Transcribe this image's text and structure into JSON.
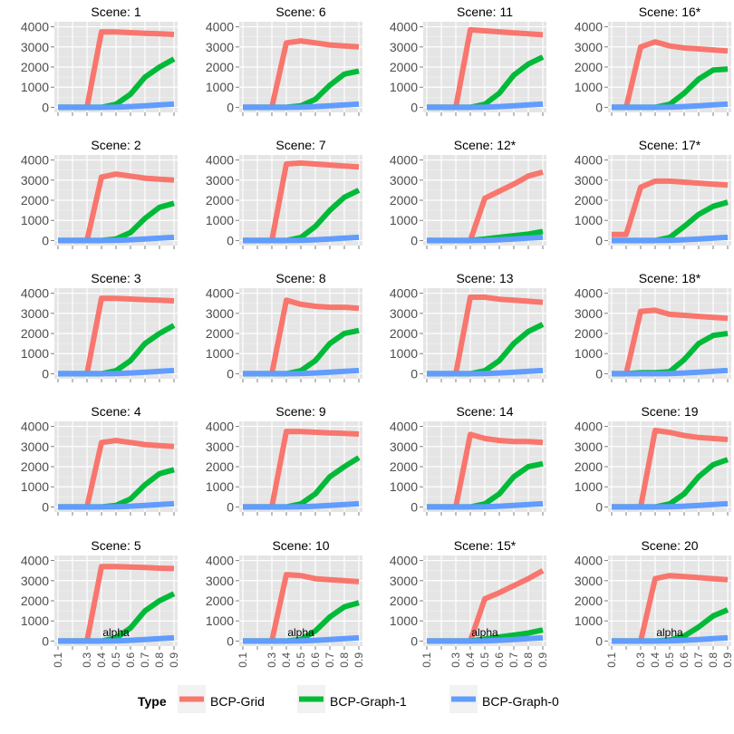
{
  "chart_data": {
    "type": "line",
    "xlabel": "alpha",
    "ylabel": "",
    "x": [
      0.1,
      0.2,
      0.3,
      0.4,
      0.5,
      0.6,
      0.7,
      0.8,
      0.9
    ],
    "x_tick_labels": [
      "0.1",
      "0.3",
      "0.4",
      "0.5",
      "0.6",
      "0.7",
      "0.8",
      "0.9"
    ],
    "x_tick_values": [
      0.1,
      0.3,
      0.4,
      0.5,
      0.6,
      0.7,
      0.8,
      0.9
    ],
    "y_ticks": [
      0,
      1000,
      2000,
      3000,
      4000
    ],
    "ylim": [
      -250,
      4250
    ],
    "xlim": [
      0.075,
      0.925
    ],
    "grid": true,
    "legend": {
      "title": "Type",
      "position": "bottom",
      "entries": [
        "BCP-Grid",
        "BCP-Graph-1",
        "BCP-Graph-0"
      ]
    },
    "series_colors": {
      "BCP-Grid": "#f8766d",
      "BCP-Graph-1": "#00ba38",
      "BCP-Graph-0": "#619cff"
    },
    "panel_background": "#e5e5e5",
    "panels": [
      {
        "title": "Scene: 1",
        "series": [
          {
            "name": "BCP-Grid",
            "values": [
              0,
              0,
              0,
              3750,
              3740,
              3710,
              3680,
              3650,
              3620
            ]
          },
          {
            "name": "BCP-Graph-1",
            "values": [
              0,
              0,
              0,
              0,
              150,
              650,
              1500,
              2000,
              2400
            ]
          },
          {
            "name": "BCP-Graph-0",
            "values": [
              0,
              0,
              0,
              0,
              10,
              40,
              80,
              120,
              160
            ]
          }
        ]
      },
      {
        "title": "Scene: 6",
        "series": [
          {
            "name": "BCP-Grid",
            "values": [
              0,
              0,
              0,
              3200,
              3300,
              3200,
              3100,
              3050,
              3000
            ]
          },
          {
            "name": "BCP-Graph-1",
            "values": [
              0,
              0,
              0,
              0,
              80,
              400,
              1100,
              1650,
              1800
            ]
          },
          {
            "name": "BCP-Graph-0",
            "values": [
              0,
              0,
              0,
              0,
              10,
              40,
              80,
              120,
              160
            ]
          }
        ]
      },
      {
        "title": "Scene: 11",
        "series": [
          {
            "name": "BCP-Grid",
            "values": [
              0,
              0,
              0,
              3850,
              3800,
              3750,
              3700,
              3650,
              3600
            ]
          },
          {
            "name": "BCP-Graph-1",
            "values": [
              0,
              0,
              0,
              0,
              150,
              700,
              1600,
              2150,
              2500
            ]
          },
          {
            "name": "BCP-Graph-0",
            "values": [
              0,
              0,
              0,
              0,
              10,
              40,
              80,
              120,
              160
            ]
          }
        ]
      },
      {
        "title": "Scene: 16*",
        "series": [
          {
            "name": "BCP-Grid",
            "values": [
              0,
              0,
              3000,
              3250,
              3050,
              2950,
              2900,
              2850,
              2800
            ]
          },
          {
            "name": "BCP-Graph-1",
            "values": [
              0,
              0,
              0,
              0,
              150,
              700,
              1400,
              1850,
              1900
            ]
          },
          {
            "name": "BCP-Graph-0",
            "values": [
              0,
              0,
              0,
              0,
              10,
              40,
              80,
              120,
              160
            ]
          }
        ]
      },
      {
        "title": "Scene: 2",
        "series": [
          {
            "name": "BCP-Grid",
            "values": [
              0,
              0,
              0,
              3150,
              3300,
              3200,
              3100,
              3050,
              3000
            ]
          },
          {
            "name": "BCP-Graph-1",
            "values": [
              0,
              0,
              0,
              0,
              80,
              400,
              1100,
              1650,
              1850
            ]
          },
          {
            "name": "BCP-Graph-0",
            "values": [
              0,
              0,
              0,
              0,
              10,
              40,
              80,
              120,
              160
            ]
          }
        ]
      },
      {
        "title": "Scene: 7",
        "series": [
          {
            "name": "BCP-Grid",
            "values": [
              0,
              0,
              0,
              3800,
              3850,
              3800,
              3750,
              3700,
              3650
            ]
          },
          {
            "name": "BCP-Graph-1",
            "values": [
              0,
              0,
              0,
              0,
              150,
              700,
              1500,
              2150,
              2500
            ]
          },
          {
            "name": "BCP-Graph-0",
            "values": [
              0,
              0,
              0,
              0,
              10,
              40,
              80,
              120,
              160
            ]
          }
        ]
      },
      {
        "title": "Scene: 12*",
        "series": [
          {
            "name": "BCP-Grid",
            "values": [
              0,
              0,
              0,
              0,
              2100,
              2450,
              2800,
              3200,
              3400
            ]
          },
          {
            "name": "BCP-Graph-1",
            "values": [
              0,
              0,
              0,
              0,
              80,
              160,
              240,
              320,
              450
            ]
          },
          {
            "name": "BCP-Graph-0",
            "values": [
              0,
              0,
              0,
              0,
              10,
              40,
              80,
              120,
              160
            ]
          }
        ]
      },
      {
        "title": "Scene: 17*",
        "series": [
          {
            "name": "BCP-Grid",
            "values": [
              300,
              300,
              2650,
              2950,
              2950,
              2900,
              2850,
              2800,
              2750
            ]
          },
          {
            "name": "BCP-Graph-1",
            "values": [
              0,
              0,
              0,
              0,
              150,
              700,
              1300,
              1700,
              1900
            ]
          },
          {
            "name": "BCP-Graph-0",
            "values": [
              0,
              0,
              0,
              0,
              10,
              40,
              80,
              120,
              160
            ]
          }
        ]
      },
      {
        "title": "Scene: 3",
        "series": [
          {
            "name": "BCP-Grid",
            "values": [
              0,
              0,
              0,
              3750,
              3740,
              3710,
              3680,
              3650,
              3620
            ]
          },
          {
            "name": "BCP-Graph-1",
            "values": [
              0,
              0,
              0,
              0,
              150,
              650,
              1500,
              2000,
              2400
            ]
          },
          {
            "name": "BCP-Graph-0",
            "values": [
              0,
              0,
              0,
              0,
              10,
              40,
              80,
              120,
              160
            ]
          }
        ]
      },
      {
        "title": "Scene: 8",
        "series": [
          {
            "name": "BCP-Grid",
            "values": [
              0,
              0,
              0,
              3650,
              3450,
              3350,
              3300,
              3300,
              3250
            ]
          },
          {
            "name": "BCP-Graph-1",
            "values": [
              0,
              0,
              0,
              0,
              150,
              650,
              1500,
              2000,
              2150
            ]
          },
          {
            "name": "BCP-Graph-0",
            "values": [
              0,
              0,
              0,
              0,
              10,
              40,
              80,
              120,
              160
            ]
          }
        ]
      },
      {
        "title": "Scene: 13",
        "series": [
          {
            "name": "BCP-Grid",
            "values": [
              0,
              0,
              0,
              3800,
              3800,
              3700,
              3650,
              3600,
              3550
            ]
          },
          {
            "name": "BCP-Graph-1",
            "values": [
              0,
              0,
              0,
              0,
              150,
              650,
              1500,
              2100,
              2450
            ]
          },
          {
            "name": "BCP-Graph-0",
            "values": [
              0,
              0,
              0,
              0,
              10,
              40,
              80,
              120,
              160
            ]
          }
        ]
      },
      {
        "title": "Scene: 18*",
        "series": [
          {
            "name": "BCP-Grid",
            "values": [
              0,
              0,
              3100,
              3150,
              2950,
              2900,
              2850,
              2800,
              2750
            ]
          },
          {
            "name": "BCP-Graph-1",
            "values": [
              0,
              0,
              50,
              50,
              100,
              700,
              1500,
              1900,
              2000
            ]
          },
          {
            "name": "BCP-Graph-0",
            "values": [
              0,
              0,
              0,
              0,
              10,
              40,
              80,
              120,
              160
            ]
          }
        ]
      },
      {
        "title": "Scene: 4",
        "series": [
          {
            "name": "BCP-Grid",
            "values": [
              0,
              0,
              0,
              3200,
              3300,
              3200,
              3100,
              3050,
              3000
            ]
          },
          {
            "name": "BCP-Graph-1",
            "values": [
              0,
              0,
              0,
              0,
              80,
              400,
              1100,
              1650,
              1850
            ]
          },
          {
            "name": "BCP-Graph-0",
            "values": [
              0,
              0,
              0,
              0,
              10,
              40,
              80,
              120,
              160
            ]
          }
        ]
      },
      {
        "title": "Scene: 9",
        "series": [
          {
            "name": "BCP-Grid",
            "values": [
              0,
              0,
              0,
              3750,
              3740,
              3710,
              3680,
              3650,
              3620
            ]
          },
          {
            "name": "BCP-Graph-1",
            "values": [
              0,
              0,
              0,
              0,
              150,
              650,
              1500,
              2000,
              2450
            ]
          },
          {
            "name": "BCP-Graph-0",
            "values": [
              0,
              0,
              0,
              0,
              10,
              40,
              80,
              120,
              160
            ]
          }
        ]
      },
      {
        "title": "Scene: 14",
        "series": [
          {
            "name": "BCP-Grid",
            "values": [
              0,
              0,
              0,
              3600,
              3400,
              3300,
              3250,
              3250,
              3200
            ]
          },
          {
            "name": "BCP-Graph-1",
            "values": [
              0,
              0,
              0,
              0,
              150,
              650,
              1500,
              2000,
              2150
            ]
          },
          {
            "name": "BCP-Graph-0",
            "values": [
              0,
              0,
              0,
              0,
              10,
              40,
              80,
              120,
              160
            ]
          }
        ]
      },
      {
        "title": "Scene: 19",
        "series": [
          {
            "name": "BCP-Grid",
            "values": [
              0,
              0,
              0,
              3800,
              3700,
              3550,
              3450,
              3400,
              3350
            ]
          },
          {
            "name": "BCP-Graph-1",
            "values": [
              0,
              0,
              0,
              0,
              150,
              650,
              1500,
              2100,
              2350
            ]
          },
          {
            "name": "BCP-Graph-0",
            "values": [
              0,
              0,
              0,
              0,
              10,
              40,
              80,
              120,
              160
            ]
          }
        ]
      },
      {
        "title": "Scene: 5",
        "series": [
          {
            "name": "BCP-Grid",
            "values": [
              0,
              0,
              0,
              3700,
              3700,
              3680,
              3650,
              3620,
              3600
            ]
          },
          {
            "name": "BCP-Graph-1",
            "values": [
              0,
              0,
              0,
              0,
              150,
              650,
              1500,
              2000,
              2350
            ]
          },
          {
            "name": "BCP-Graph-0",
            "values": [
              0,
              0,
              0,
              0,
              10,
              40,
              80,
              120,
              160
            ]
          }
        ]
      },
      {
        "title": "Scene: 10",
        "series": [
          {
            "name": "BCP-Grid",
            "values": [
              0,
              0,
              0,
              3300,
              3250,
              3100,
              3050,
              3000,
              2950
            ]
          },
          {
            "name": "BCP-Graph-1",
            "values": [
              0,
              0,
              0,
              0,
              80,
              500,
              1200,
              1700,
              1900
            ]
          },
          {
            "name": "BCP-Graph-0",
            "values": [
              0,
              0,
              0,
              0,
              10,
              40,
              80,
              120,
              160
            ]
          }
        ]
      },
      {
        "title": "Scene: 15*",
        "series": [
          {
            "name": "BCP-Grid",
            "values": [
              0,
              0,
              0,
              0,
              2100,
              2400,
              2750,
              3100,
              3500
            ]
          },
          {
            "name": "BCP-Graph-1",
            "values": [
              0,
              0,
              0,
              0,
              100,
              200,
              300,
              400,
              550
            ]
          },
          {
            "name": "BCP-Graph-0",
            "values": [
              0,
              0,
              0,
              0,
              10,
              40,
              80,
              120,
              160
            ]
          }
        ]
      },
      {
        "title": "Scene: 20",
        "series": [
          {
            "name": "BCP-Grid",
            "values": [
              0,
              0,
              0,
              3100,
              3250,
              3200,
              3150,
              3100,
              3050
            ]
          },
          {
            "name": "BCP-Graph-1",
            "values": [
              0,
              0,
              0,
              0,
              50,
              250,
              700,
              1250,
              1550
            ]
          },
          {
            "name": "BCP-Graph-0",
            "values": [
              0,
              0,
              0,
              0,
              10,
              40,
              80,
              120,
              160
            ]
          }
        ]
      }
    ]
  }
}
